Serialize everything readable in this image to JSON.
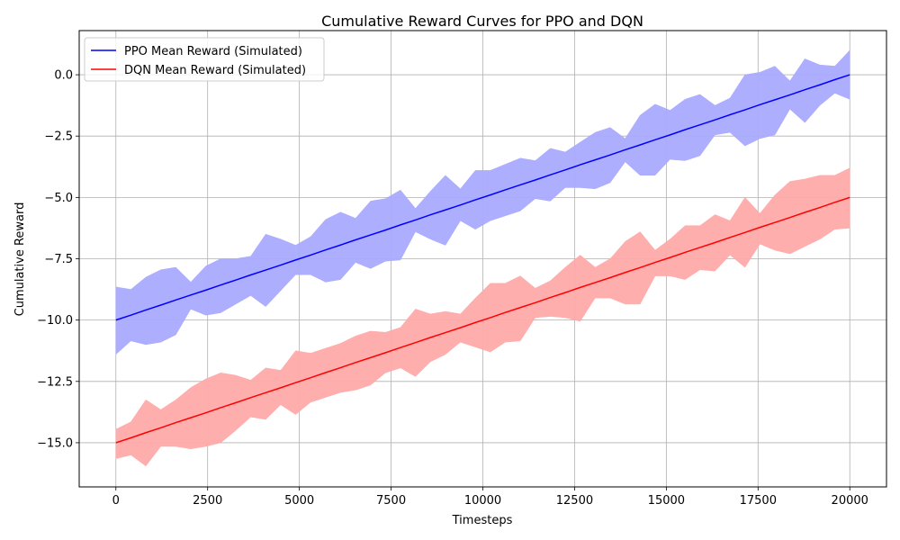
{
  "chart_data": {
    "type": "line",
    "title": "Cumulative Reward Curves for PPO and DQN",
    "xlabel": "Timesteps",
    "ylabel": "Cumulative Reward",
    "xlim": [
      -1000,
      21000
    ],
    "ylim": [
      -16.8,
      1.8
    ],
    "xticks": [
      0,
      2500,
      5000,
      7500,
      10000,
      12500,
      15000,
      17500,
      20000
    ],
    "xtick_labels": [
      "0",
      "2500",
      "5000",
      "7500",
      "10000",
      "12500",
      "15000",
      "17500",
      "20000"
    ],
    "yticks": [
      -15.0,
      -12.5,
      -10.0,
      -7.5,
      -5.0,
      -2.5,
      0.0
    ],
    "ytick_labels": [
      "−15.0",
      "−12.5",
      "−10.0",
      "−7.5",
      "−5.0",
      "−2.5",
      "0.0"
    ],
    "grid": true,
    "legend_position": "top-left",
    "x": [
      0,
      408,
      816,
      1224,
      1633,
      2041,
      2449,
      2857,
      3265,
      3673,
      4082,
      4490,
      4898,
      5306,
      5714,
      6122,
      6531,
      6939,
      7347,
      7755,
      8163,
      8571,
      8980,
      9388,
      9796,
      10204,
      10612,
      11020,
      11429,
      11837,
      12245,
      12653,
      13061,
      13469,
      13878,
      14286,
      14694,
      15102,
      15510,
      15918,
      16327,
      16735,
      17143,
      17551,
      17959,
      18367,
      18776,
      19184,
      19592,
      20000
    ],
    "series": [
      {
        "name": "PPO Mean Reward (Simulated)",
        "color": "#0000ff",
        "band_color": "#aaaaff",
        "mean": [
          -10.0,
          -9.8,
          -9.59,
          -9.39,
          -9.18,
          -8.98,
          -8.78,
          -8.57,
          -8.37,
          -8.16,
          -7.96,
          -7.76,
          -7.55,
          -7.35,
          -7.14,
          -6.94,
          -6.73,
          -6.53,
          -6.33,
          -6.12,
          -5.92,
          -5.71,
          -5.51,
          -5.31,
          -5.1,
          -4.9,
          -4.69,
          -4.49,
          -4.29,
          -4.08,
          -3.88,
          -3.67,
          -3.47,
          -3.27,
          -3.06,
          -2.86,
          -2.65,
          -2.45,
          -2.24,
          -2.04,
          -1.84,
          -1.63,
          -1.43,
          -1.22,
          -1.02,
          -0.82,
          -0.61,
          -0.41,
          -0.2,
          0.0
        ],
        "upper": [
          -8.65,
          -8.75,
          -8.25,
          -7.95,
          -7.85,
          -8.45,
          -7.8,
          -7.5,
          -7.5,
          -7.4,
          -6.5,
          -6.7,
          -6.95,
          -6.6,
          -5.9,
          -5.6,
          -5.85,
          -5.15,
          -5.05,
          -4.7,
          -5.45,
          -4.75,
          -4.1,
          -4.65,
          -3.9,
          -3.9,
          -3.65,
          -3.4,
          -3.5,
          -3.0,
          -3.15,
          -2.75,
          -2.35,
          -2.15,
          -2.6,
          -1.65,
          -1.2,
          -1.45,
          -1.0,
          -0.8,
          -1.25,
          -0.95,
          0.0,
          0.1,
          0.35,
          -0.25,
          0.65,
          0.4,
          0.35,
          1.0
        ],
        "lower": [
          -11.4,
          -10.85,
          -11.0,
          -10.9,
          -10.6,
          -9.55,
          -9.8,
          -9.7,
          -9.35,
          -9.0,
          -9.45,
          -8.8,
          -8.15,
          -8.15,
          -8.45,
          -8.35,
          -7.65,
          -7.9,
          -7.6,
          -7.55,
          -6.4,
          -6.7,
          -6.95,
          -5.95,
          -6.3,
          -5.95,
          -5.75,
          -5.55,
          -5.05,
          -5.15,
          -4.6,
          -4.6,
          -4.65,
          -4.4,
          -3.55,
          -4.1,
          -4.1,
          -3.45,
          -3.5,
          -3.3,
          -2.45,
          -2.35,
          -2.9,
          -2.6,
          -2.45,
          -1.4,
          -1.95,
          -1.25,
          -0.75,
          -1.0
        ]
      },
      {
        "name": "DQN Mean Reward (Simulated)",
        "color": "#ff0000",
        "band_color": "#ffaaaa",
        "mean": [
          -15.0,
          -14.8,
          -14.59,
          -14.39,
          -14.18,
          -13.98,
          -13.78,
          -13.57,
          -13.37,
          -13.16,
          -12.96,
          -12.76,
          -12.55,
          -12.35,
          -12.14,
          -11.94,
          -11.73,
          -11.53,
          -11.33,
          -11.12,
          -10.92,
          -10.71,
          -10.51,
          -10.31,
          -10.1,
          -9.9,
          -9.69,
          -9.49,
          -9.29,
          -9.08,
          -8.88,
          -8.67,
          -8.47,
          -8.27,
          -8.06,
          -7.86,
          -7.65,
          -7.45,
          -7.24,
          -7.04,
          -6.84,
          -6.63,
          -6.43,
          -6.22,
          -6.02,
          -5.82,
          -5.61,
          -5.41,
          -5.2,
          -5.0
        ],
        "upper": [
          -14.45,
          -14.15,
          -13.25,
          -13.65,
          -13.25,
          -12.75,
          -12.4,
          -12.15,
          -12.25,
          -12.45,
          -11.95,
          -12.05,
          -11.25,
          -11.35,
          -11.15,
          -10.95,
          -10.65,
          -10.45,
          -10.5,
          -10.3,
          -9.55,
          -9.75,
          -9.65,
          -9.75,
          -9.1,
          -8.5,
          -8.5,
          -8.2,
          -8.7,
          -8.4,
          -7.85,
          -7.35,
          -7.85,
          -7.5,
          -6.8,
          -6.4,
          -7.15,
          -6.7,
          -6.15,
          -6.15,
          -5.7,
          -5.95,
          -5.0,
          -5.65,
          -4.9,
          -4.35,
          -4.25,
          -4.1,
          -4.1,
          -3.8
        ],
        "lower": [
          -15.65,
          -15.5,
          -15.95,
          -15.15,
          -15.15,
          -15.25,
          -15.15,
          -15.0,
          -14.5,
          -13.95,
          -14.05,
          -13.45,
          -13.85,
          -13.35,
          -13.15,
          -12.95,
          -12.85,
          -12.65,
          -12.15,
          -11.95,
          -12.3,
          -11.7,
          -11.4,
          -10.9,
          -11.1,
          -11.3,
          -10.9,
          -10.85,
          -9.9,
          -9.85,
          -9.9,
          -10.05,
          -9.1,
          -9.1,
          -9.35,
          -9.35,
          -8.2,
          -8.2,
          -8.35,
          -7.95,
          -8.0,
          -7.35,
          -7.85,
          -6.9,
          -7.15,
          -7.3,
          -7.0,
          -6.7,
          -6.3,
          -6.25
        ]
      }
    ]
  }
}
